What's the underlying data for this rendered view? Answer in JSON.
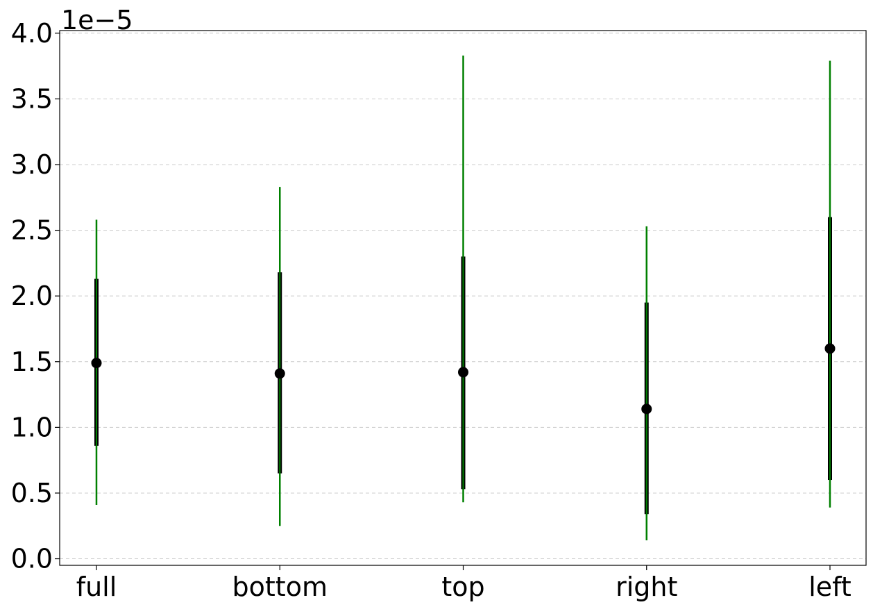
{
  "chart_data": {
    "type": "errorbar",
    "title": "",
    "xlabel": "",
    "ylabel": "",
    "y_offset_text": "1e−5",
    "ylim": [
      -0.05,
      4.02
    ],
    "yticks": [
      0.0,
      0.5,
      1.0,
      1.5,
      2.0,
      2.5,
      3.0,
      3.5,
      4.0
    ],
    "ytick_labels": [
      "0.0",
      "0.5",
      "1.0",
      "1.5",
      "2.0",
      "2.5",
      "3.0",
      "3.5",
      "4.0"
    ],
    "grid": {
      "axis": "y",
      "style": "dashed"
    },
    "categories": [
      "full",
      "bottom",
      "top",
      "right",
      "left"
    ],
    "points": [
      {
        "label": "full",
        "median": 1.49,
        "inner": [
          0.86,
          2.13
        ],
        "outer": [
          0.41,
          2.58
        ]
      },
      {
        "label": "bottom",
        "median": 1.41,
        "inner": [
          0.65,
          2.18
        ],
        "outer": [
          0.25,
          2.83
        ]
      },
      {
        "label": "top",
        "median": 1.42,
        "inner": [
          0.53,
          2.3
        ],
        "outer": [
          0.43,
          3.83
        ]
      },
      {
        "label": "right",
        "median": 1.14,
        "inner": [
          0.34,
          1.95
        ],
        "outer": [
          0.14,
          2.53
        ]
      },
      {
        "label": "left",
        "median": 1.6,
        "inner": [
          0.6,
          2.6
        ],
        "outer": [
          0.39,
          3.79
        ]
      }
    ],
    "colors": {
      "outer": "#008000",
      "inner": "#000000",
      "marker": "#000000",
      "grid": "#cccccc"
    }
  }
}
